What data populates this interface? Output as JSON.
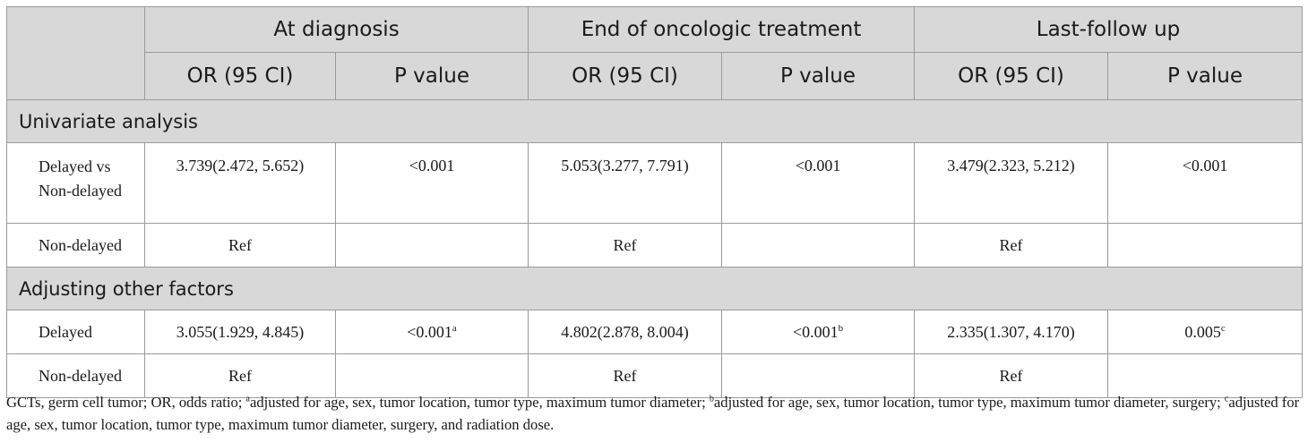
{
  "headers": {
    "groups": [
      "At diagnosis",
      "End of oncologic treatment",
      "Last-follow up"
    ],
    "sub": [
      "OR (95 CI)",
      "P value",
      "OR (95 CI)",
      "P value",
      "OR (95 CI)",
      "P value"
    ]
  },
  "sections": [
    {
      "title": "Univariate analysis",
      "rows": [
        {
          "label": [
            "Delayed vs",
            "Non-delayed"
          ],
          "cells": [
            {
              "v": "3.739(2.472, 5.652)",
              "sup": ""
            },
            {
              "v": "<0.001",
              "sup": ""
            },
            {
              "v": "5.053(3.277, 7.791)",
              "sup": ""
            },
            {
              "v": "<0.001",
              "sup": ""
            },
            {
              "v": "3.479(2.323, 5.212)",
              "sup": ""
            },
            {
              "v": "<0.001",
              "sup": ""
            }
          ]
        },
        {
          "label": [
            "Non-delayed"
          ],
          "cells": [
            {
              "v": "Ref",
              "sup": ""
            },
            {
              "v": "",
              "sup": ""
            },
            {
              "v": "Ref",
              "sup": ""
            },
            {
              "v": "",
              "sup": ""
            },
            {
              "v": "Ref",
              "sup": ""
            },
            {
              "v": "",
              "sup": ""
            }
          ]
        }
      ]
    },
    {
      "title": "Adjusting other factors",
      "rows": [
        {
          "label": [
            "Delayed"
          ],
          "cells": [
            {
              "v": "3.055(1.929, 4.845)",
              "sup": ""
            },
            {
              "v": "<0.001",
              "sup": "a"
            },
            {
              "v": "4.802(2.878, 8.004)",
              "sup": ""
            },
            {
              "v": "<0.001",
              "sup": "b"
            },
            {
              "v": "2.335(1.307, 4.170)",
              "sup": ""
            },
            {
              "v": "0.005",
              "sup": "c"
            }
          ]
        },
        {
          "label": [
            "Non-delayed"
          ],
          "cells": [
            {
              "v": "Ref",
              "sup": ""
            },
            {
              "v": "",
              "sup": ""
            },
            {
              "v": "Ref",
              "sup": ""
            },
            {
              "v": "",
              "sup": ""
            },
            {
              "v": "Ref",
              "sup": ""
            },
            {
              "v": "",
              "sup": ""
            }
          ]
        }
      ]
    }
  ],
  "footnote": {
    "intro": "GCTs, germ cell tumor; OR, odds ratio; ",
    "notes": [
      {
        "mark": "a",
        "text": "adjusted for age, sex, tumor location, tumor type, maximum tumor diameter; "
      },
      {
        "mark": "b",
        "text": "adjusted for age, sex, tumor location, tumor type, maximum tumor diameter, surgery; "
      },
      {
        "mark": "c",
        "text": "adjusted for age, sex, tumor location, tumor type, maximum tumor diameter, surgery, and radiation dose."
      }
    ]
  }
}
